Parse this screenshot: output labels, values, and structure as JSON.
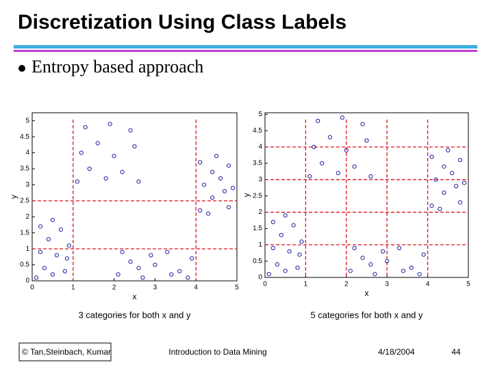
{
  "slide": {
    "title": "Discretization Using Class Labels",
    "bullet": "Entropy based approach",
    "footer": {
      "copyright": "© Tan,Steinbach, Kumar",
      "course": "Introduction to Data Mining",
      "date": "4/18/2004",
      "page": "44"
    }
  },
  "chart_data": [
    {
      "type": "scatter",
      "caption": "3 categories for both x and y",
      "xlabel": "x",
      "ylabel": "y",
      "color": "#1c1c9c",
      "cut_color": "#e0101a",
      "x": [
        0.1,
        0.3,
        0.5,
        0.8,
        0.2,
        0.6,
        0.9,
        0.4,
        0.7,
        0.2,
        0.5,
        0.85,
        1.1,
        1.4,
        1.8,
        2.2,
        2.6,
        1.2,
        1.6,
        2.0,
        2.5,
        1.3,
        1.9,
        2.4,
        2.1,
        2.4,
        2.7,
        3.0,
        3.3,
        3.6,
        3.9,
        2.2,
        2.9,
        3.4,
        3.8,
        2.6,
        4.1,
        4.4,
        4.8,
        4.2,
        4.6,
        4.9,
        4.1,
        4.5,
        4.8,
        4.3,
        4.7,
        4.4
      ],
      "values": [
        0.1,
        0.4,
        0.2,
        0.3,
        0.9,
        0.8,
        1.1,
        1.3,
        1.6,
        1.7,
        1.9,
        0.7,
        3.1,
        3.5,
        3.2,
        3.4,
        3.1,
        4.0,
        4.3,
        3.9,
        4.2,
        4.8,
        4.9,
        4.7,
        0.2,
        0.6,
        0.1,
        0.5,
        0.9,
        0.3,
        0.7,
        0.9,
        0.8,
        0.2,
        0.1,
        0.4,
        2.2,
        2.6,
        2.3,
        3.0,
        3.2,
        2.9,
        3.7,
        3.9,
        3.6,
        2.1,
        2.8,
        3.4
      ],
      "xlim": [
        0,
        5
      ],
      "ylim": [
        0,
        5.25
      ],
      "xticks": [
        0,
        1,
        2,
        3,
        4,
        5
      ],
      "yticks": [
        0,
        0.5,
        1,
        1.5,
        2,
        2.5,
        3,
        3.5,
        4,
        4.5,
        5
      ],
      "x_cuts": [
        1,
        4
      ],
      "y_cuts": [
        1,
        2.5
      ]
    },
    {
      "type": "scatter",
      "caption": "5 categories for both x and y",
      "xlabel": "x",
      "ylabel": "y",
      "color": "#1c1c9c",
      "cut_color": "#e0101a",
      "x": [
        0.1,
        0.3,
        0.5,
        0.8,
        0.2,
        0.6,
        0.9,
        0.4,
        0.7,
        0.2,
        0.5,
        0.85,
        1.1,
        1.4,
        1.8,
        2.2,
        2.6,
        1.2,
        1.6,
        2.0,
        2.5,
        1.3,
        1.9,
        2.4,
        2.1,
        2.4,
        2.7,
        3.0,
        3.3,
        3.6,
        3.9,
        2.2,
        2.9,
        3.4,
        3.8,
        2.6,
        4.1,
        4.4,
        4.8,
        4.2,
        4.6,
        4.9,
        4.1,
        4.5,
        4.8,
        4.3,
        4.7,
        4.4
      ],
      "values": [
        0.1,
        0.4,
        0.2,
        0.3,
        0.9,
        0.8,
        1.1,
        1.3,
        1.6,
        1.7,
        1.9,
        0.7,
        3.1,
        3.5,
        3.2,
        3.4,
        3.1,
        4.0,
        4.3,
        3.9,
        4.2,
        4.8,
        4.9,
        4.7,
        0.2,
        0.6,
        0.1,
        0.5,
        0.9,
        0.3,
        0.7,
        0.9,
        0.8,
        0.2,
        0.1,
        0.4,
        2.2,
        2.6,
        2.3,
        3.0,
        3.2,
        2.9,
        3.7,
        3.9,
        3.6,
        2.1,
        2.8,
        3.4
      ],
      "xlim": [
        0,
        5
      ],
      "ylim": [
        0,
        5.05
      ],
      "xticks": [
        0,
        1,
        2,
        3,
        4,
        5
      ],
      "yticks": [
        0,
        0.5,
        1,
        1.5,
        2,
        2.5,
        3,
        3.5,
        4,
        4.5,
        5
      ],
      "x_cuts": [
        1,
        2,
        3,
        4
      ],
      "y_cuts": [
        1,
        2,
        3,
        4
      ]
    }
  ]
}
